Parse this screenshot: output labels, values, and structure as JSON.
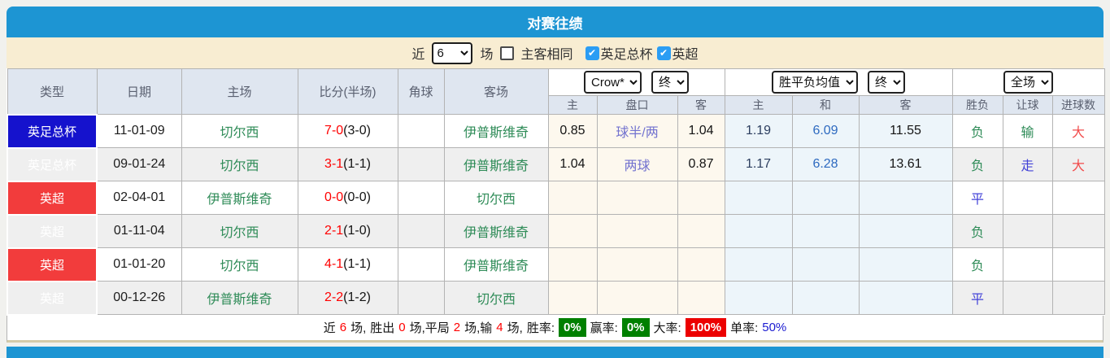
{
  "title": "对赛往绩",
  "colors": {
    "accent_blue": "#1d95d3",
    "filter_bg": "#f8edd2",
    "badge_blue": "#1512cd",
    "badge_red": "#f23c3c",
    "team_green": "#2e8b57",
    "score_red": "#ff0000",
    "pct_green_bg": "#008000",
    "pct_red_bg": "#ec0000"
  },
  "filter": {
    "near": "近",
    "count": "6",
    "games": "场",
    "same_venue": "主客相同",
    "same_venue_checked": false,
    "fa_cup": "英足总杯",
    "fa_cup_checked": true,
    "premier_league": "英超",
    "premier_league_checked": true
  },
  "table": {
    "headers": {
      "type": "类型",
      "date": "日期",
      "home": "主场",
      "score": "比分(半场)",
      "corner": "角球",
      "away": "客场",
      "odds_source_select": "Crow*",
      "odds_time_select": "终",
      "odds_home": "主",
      "odds_handicap": "盘口",
      "odds_away": "客",
      "avg_select": "胜平负均值",
      "avg_time_select": "终",
      "avg_home": "主",
      "avg_draw": "和",
      "avg_away": "客",
      "fulltime_select": "全场",
      "result": "胜负",
      "handicap_result": "让球",
      "goals": "进球数"
    },
    "rows": [
      {
        "type": "英足总杯",
        "type_color": "blue",
        "date": "11-01-09",
        "home": "切尔西",
        "score": "7-0",
        "half": "(3-0)",
        "corner": "",
        "away": "伊普斯维奇",
        "odds_home": "0.85",
        "handicap": "球半/两",
        "odds_away": "1.04",
        "avg_home": "1.19",
        "avg_draw": "6.09",
        "avg_away": "11.55",
        "result": "负",
        "result_color": "green",
        "handicap_result": "输",
        "handicap_result_color": "green",
        "goals": "大",
        "goals_color": "red"
      },
      {
        "type": "英足总杯",
        "type_color": "blue",
        "date": "09-01-24",
        "home": "切尔西",
        "score": "3-1",
        "half": "(1-1)",
        "corner": "",
        "away": "伊普斯维奇",
        "odds_home": "1.04",
        "handicap": "两球",
        "odds_away": "0.87",
        "avg_home": "1.17",
        "avg_draw": "6.28",
        "avg_away": "13.61",
        "result": "负",
        "result_color": "green",
        "handicap_result": "走",
        "handicap_result_color": "blue",
        "goals": "大",
        "goals_color": "red"
      },
      {
        "type": "英超",
        "type_color": "red",
        "date": "02-04-01",
        "home": "伊普斯维奇",
        "score": "0-0",
        "half": "(0-0)",
        "corner": "",
        "away": "切尔西",
        "odds_home": "",
        "handicap": "",
        "odds_away": "",
        "avg_home": "",
        "avg_draw": "",
        "avg_away": "",
        "result": "平",
        "result_color": "blue",
        "handicap_result": "",
        "handicap_result_color": "",
        "goals": "",
        "goals_color": ""
      },
      {
        "type": "英超",
        "type_color": "red",
        "date": "01-11-04",
        "home": "切尔西",
        "score": "2-1",
        "half": "(1-0)",
        "corner": "",
        "away": "伊普斯维奇",
        "odds_home": "",
        "handicap": "",
        "odds_away": "",
        "avg_home": "",
        "avg_draw": "",
        "avg_away": "",
        "result": "负",
        "result_color": "green",
        "handicap_result": "",
        "handicap_result_color": "",
        "goals": "",
        "goals_color": ""
      },
      {
        "type": "英超",
        "type_color": "red",
        "date": "01-01-20",
        "home": "切尔西",
        "score": "4-1",
        "half": "(1-1)",
        "corner": "",
        "away": "伊普斯维奇",
        "odds_home": "",
        "handicap": "",
        "odds_away": "",
        "avg_home": "",
        "avg_draw": "",
        "avg_away": "",
        "result": "负",
        "result_color": "green",
        "handicap_result": "",
        "handicap_result_color": "",
        "goals": "",
        "goals_color": ""
      },
      {
        "type": "英超",
        "type_color": "red",
        "date": "00-12-26",
        "home": "伊普斯维奇",
        "score": "2-2",
        "half": "(1-2)",
        "corner": "",
        "away": "切尔西",
        "odds_home": "",
        "handicap": "",
        "odds_away": "",
        "avg_home": "",
        "avg_draw": "",
        "avg_away": "",
        "result": "平",
        "result_color": "blue",
        "handicap_result": "",
        "handicap_result_color": "",
        "goals": "",
        "goals_color": ""
      }
    ]
  },
  "summary": {
    "near": "近",
    "games_count": "6",
    "seg_games": "场,",
    "wins_label": "胜出",
    "wins": "0",
    "seg_wins": "场,平局",
    "draws": "2",
    "seg_draws": "场,输",
    "losses": "4",
    "seg_losses": "场,",
    "win_rate_label": "胜率:",
    "win_rate": "0%",
    "win2_rate_label": "赢率:",
    "win2_rate": "0%",
    "big_rate_label": "大率:",
    "big_rate": "100%",
    "single_rate_label": "单率:",
    "single_rate": "50%"
  }
}
